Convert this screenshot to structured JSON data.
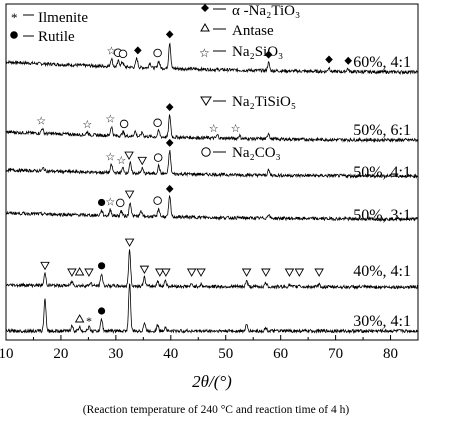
{
  "chart_data": {
    "type": "line",
    "title": "",
    "xlabel": "2θ/(°)",
    "ylabel": "",
    "xlim": [
      10,
      85
    ],
    "x_ticks": [
      10,
      20,
      30,
      40,
      50,
      60,
      70,
      80
    ],
    "caption": "(Reaction temperature of 240 °C and reaction time of 4 h)",
    "legend": [
      {
        "symbol": "*",
        "label": "Ilmenite"
      },
      {
        "symbol": "●",
        "label": "Rutile"
      },
      {
        "symbol": "◆",
        "label": "α -Na₂TiO₃"
      },
      {
        "symbol": "△",
        "label": "Antase"
      },
      {
        "symbol": "☆",
        "label": "Na₂SiO₃"
      },
      {
        "symbol": "▽",
        "label": "Na₂TiSiO₅"
      },
      {
        "symbol": "○",
        "label": "Na₂CO₃"
      }
    ],
    "series": [
      {
        "name": "60%, 4:1",
        "peaks": [
          {
            "x": 29.2,
            "h": 8
          },
          {
            "x": 30.5,
            "h": 6
          },
          {
            "x": 31.2,
            "h": 5
          },
          {
            "x": 33.8,
            "h": 9
          },
          {
            "x": 36.2,
            "h": 5
          },
          {
            "x": 37.8,
            "h": 7
          },
          {
            "x": 39.8,
            "h": 26
          },
          {
            "x": 57.8,
            "h": 8
          },
          {
            "x": 68.8,
            "h": 4
          },
          {
            "x": 72.2,
            "h": 3
          }
        ],
        "markers": [
          {
            "x": 29.2,
            "sym": "star"
          },
          {
            "x": 30.4,
            "sym": "circle"
          },
          {
            "x": 31.3,
            "sym": "circle"
          },
          {
            "x": 34.0,
            "sym": "diamond"
          },
          {
            "x": 37.6,
            "sym": "circle"
          },
          {
            "x": 39.8,
            "sym": "diamond"
          },
          {
            "x": 57.8,
            "sym": "diamond"
          },
          {
            "x": 68.8,
            "sym": "diamond"
          },
          {
            "x": 72.3,
            "sym": "diamond"
          }
        ]
      },
      {
        "name": "50%, 6:1",
        "peaks": [
          {
            "x": 16.6,
            "h": 5
          },
          {
            "x": 24.8,
            "h": 3
          },
          {
            "x": 29.2,
            "h": 9
          },
          {
            "x": 31.3,
            "h": 4
          },
          {
            "x": 33.5,
            "h": 5
          },
          {
            "x": 34.8,
            "h": 4
          },
          {
            "x": 37.8,
            "h": 6
          },
          {
            "x": 39.8,
            "h": 22
          },
          {
            "x": 48.5,
            "h": 3
          },
          {
            "x": 52.5,
            "h": 3
          },
          {
            "x": 57.8,
            "h": 6
          }
        ],
        "markers": [
          {
            "x": 16.4,
            "sym": "star"
          },
          {
            "x": 24.8,
            "sym": "star"
          },
          {
            "x": 29.0,
            "sym": "star"
          },
          {
            "x": 31.5,
            "sym": "circle"
          },
          {
            "x": 37.6,
            "sym": "circle"
          },
          {
            "x": 39.8,
            "sym": "diamond"
          },
          {
            "x": 47.8,
            "sym": "star"
          },
          {
            "x": 51.8,
            "sym": "star"
          }
        ]
      },
      {
        "name": "50%, 4:1",
        "peaks": [
          {
            "x": 16.8,
            "h": 3
          },
          {
            "x": 29.2,
            "h": 8
          },
          {
            "x": 31.3,
            "h": 5
          },
          {
            "x": 32.6,
            "h": 10
          },
          {
            "x": 34.8,
            "h": 5
          },
          {
            "x": 37.8,
            "h": 8
          },
          {
            "x": 39.8,
            "h": 23
          },
          {
            "x": 57.8,
            "h": 5
          }
        ],
        "markers": [
          {
            "x": 29.0,
            "sym": "star"
          },
          {
            "x": 31.0,
            "sym": "star"
          },
          {
            "x": 32.4,
            "sym": "tri_down"
          },
          {
            "x": 34.8,
            "sym": "tri_down"
          },
          {
            "x": 37.7,
            "sym": "circle"
          },
          {
            "x": 39.8,
            "sym": "diamond"
          }
        ]
      },
      {
        "name": "50%, 3:1",
        "peaks": [
          {
            "x": 27.4,
            "h": 5
          },
          {
            "x": 29.0,
            "h": 6
          },
          {
            "x": 31.0,
            "h": 5
          },
          {
            "x": 32.6,
            "h": 14
          },
          {
            "x": 34.6,
            "h": 5
          },
          {
            "x": 37.8,
            "h": 8
          },
          {
            "x": 39.8,
            "h": 20
          },
          {
            "x": 57.8,
            "h": 4
          }
        ],
        "markers": [
          {
            "x": 27.4,
            "sym": "dot"
          },
          {
            "x": 29.0,
            "sym": "star"
          },
          {
            "x": 30.8,
            "sym": "circle"
          },
          {
            "x": 32.5,
            "sym": "tri_down"
          },
          {
            "x": 37.6,
            "sym": "circle"
          },
          {
            "x": 39.8,
            "sym": "diamond"
          }
        ]
      },
      {
        "name": "40%, 4:1",
        "peaks": [
          {
            "x": 17.1,
            "h": 12
          },
          {
            "x": 22.0,
            "h": 4
          },
          {
            "x": 25.4,
            "h": 3
          },
          {
            "x": 27.4,
            "h": 12
          },
          {
            "x": 32.5,
            "h": 36
          },
          {
            "x": 35.2,
            "h": 9
          },
          {
            "x": 37.6,
            "h": 5
          },
          {
            "x": 39.0,
            "h": 6
          },
          {
            "x": 43.8,
            "h": 2
          },
          {
            "x": 45.5,
            "h": 2
          },
          {
            "x": 53.8,
            "h": 6
          },
          {
            "x": 57.3,
            "h": 4
          },
          {
            "x": 61.6,
            "h": 2
          },
          {
            "x": 63.4,
            "h": 2
          },
          {
            "x": 67.0,
            "h": 2
          }
        ],
        "markers": [
          {
            "x": 17.1,
            "sym": "tri_down"
          },
          {
            "x": 22.0,
            "sym": "tri_down"
          },
          {
            "x": 23.4,
            "sym": "tri_up"
          },
          {
            "x": 25.1,
            "sym": "tri_down"
          },
          {
            "x": 27.4,
            "sym": "dot"
          },
          {
            "x": 32.5,
            "sym": "tri_down"
          },
          {
            "x": 35.2,
            "sym": "tri_down"
          },
          {
            "x": 38.0,
            "sym": "tri_down"
          },
          {
            "x": 39.1,
            "sym": "tri_down"
          },
          {
            "x": 43.8,
            "sym": "tri_down"
          },
          {
            "x": 45.5,
            "sym": "tri_down"
          },
          {
            "x": 53.8,
            "sym": "tri_down"
          },
          {
            "x": 57.3,
            "sym": "tri_down"
          },
          {
            "x": 61.6,
            "sym": "tri_down"
          },
          {
            "x": 63.4,
            "sym": "tri_down"
          },
          {
            "x": 67.0,
            "sym": "tri_down"
          }
        ]
      },
      {
        "name": "30%, 4:1",
        "peaks": [
          {
            "x": 17.1,
            "h": 32
          },
          {
            "x": 22.0,
            "h": 5
          },
          {
            "x": 23.4,
            "h": 4
          },
          {
            "x": 25.1,
            "h": 4
          },
          {
            "x": 27.4,
            "h": 12
          },
          {
            "x": 32.5,
            "h": 48
          },
          {
            "x": 35.2,
            "h": 8
          },
          {
            "x": 37.6,
            "h": 6
          },
          {
            "x": 39.0,
            "h": 4
          },
          {
            "x": 53.8,
            "h": 6
          },
          {
            "x": 57.3,
            "h": 3
          }
        ],
        "markers": [
          {
            "x": 23.4,
            "sym": "tri_up"
          },
          {
            "x": 25.1,
            "sym": "asterisk"
          },
          {
            "x": 27.4,
            "sym": "dot"
          }
        ]
      }
    ]
  }
}
